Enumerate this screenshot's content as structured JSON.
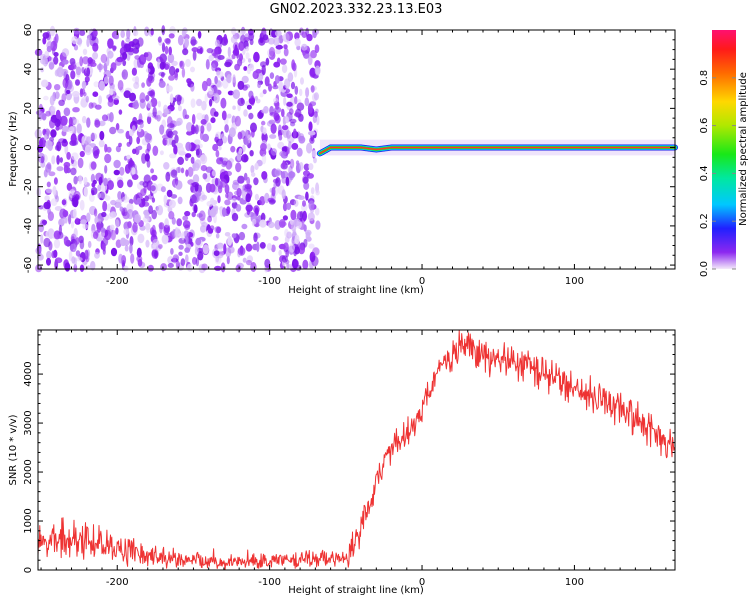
{
  "title": "GN02.2023.332.23.13.E03",
  "chart_data": [
    {
      "type": "heatmap",
      "name": "spectrogram",
      "xlabel": "Height of straight line (km)",
      "ylabel": "Frequency (Hz)",
      "xlim": [
        -252,
        166
      ],
      "ylim": [
        -62,
        60
      ],
      "x_ticks": [
        -200,
        -100,
        0,
        100
      ],
      "y_ticks": [
        -60,
        -40,
        -20,
        0,
        20,
        40,
        60
      ],
      "noise_region_x": [
        -252,
        -67
      ],
      "signal_track": {
        "x": [
          -67,
          -60,
          -50,
          -40,
          -30,
          -20,
          -10,
          0,
          166
        ],
        "frequency": [
          -3,
          0,
          0,
          0,
          -1,
          0,
          0,
          0,
          0
        ]
      },
      "colorbar": {
        "label": "Normalized spectral amplitude",
        "ticks": [
          0.0,
          0.2,
          0.4,
          0.6,
          0.8
        ],
        "range": [
          0,
          1
        ]
      }
    },
    {
      "type": "line",
      "name": "snr",
      "xlabel": "Height of straight line (km)",
      "ylabel": "SNR (10 * v/v)",
      "xlim": [
        -252,
        166
      ],
      "ylim": [
        0,
        4900
      ],
      "x_ticks": [
        -200,
        -100,
        0,
        100
      ],
      "y_ticks": [
        0,
        1000,
        2000,
        3000,
        4000
      ],
      "series_color": "#ee3333",
      "trend": {
        "x": [
          -252,
          -240,
          -220,
          -200,
          -180,
          -160,
          -140,
          -120,
          -100,
          -80,
          -60,
          -50,
          -45,
          -40,
          -35,
          -30,
          -25,
          -20,
          -15,
          -10,
          -5,
          0,
          5,
          10,
          15,
          20,
          25,
          30,
          35,
          40,
          50,
          60,
          70,
          80,
          90,
          100,
          110,
          120,
          130,
          140,
          150,
          160,
          166
        ],
        "y": [
          500,
          600,
          650,
          450,
          300,
          230,
          180,
          170,
          200,
          220,
          240,
          250,
          500,
          900,
          1300,
          1800,
          2200,
          2500,
          2700,
          2800,
          3000,
          3300,
          3700,
          4000,
          4200,
          4400,
          4550,
          4600,
          4500,
          4300,
          4300,
          4300,
          4150,
          4000,
          3900,
          3700,
          3600,
          3450,
          3300,
          3100,
          2900,
          2600,
          2300
        ]
      }
    }
  ]
}
